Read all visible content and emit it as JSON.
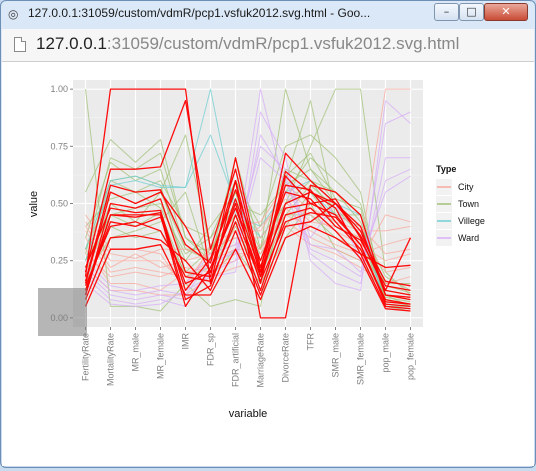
{
  "window": {
    "title": "127.0.0.1:31059/custom/vdmR/pcp1.vsfuk2012.svg.html - Goo...",
    "app_icon": "chrome-app-icon",
    "controls": {
      "minimize": "minimize-icon",
      "maximize": "maximize-icon",
      "close": "close-icon"
    }
  },
  "address": {
    "host": "127.0.0.1",
    "rest": ":31059/custom/vdmR/pcp1.vsfuk2012.svg.html"
  },
  "chart_data": {
    "type": "line",
    "subtype": "parallel-coordinates",
    "title": "",
    "xlabel": "variable",
    "ylabel": "value",
    "categories": [
      "FertilityRate",
      "MortalityRate",
      "MR_male",
      "MR_female",
      "IMR",
      "FDR_sp",
      "FDR_artificial",
      "MarriageRate",
      "DivorceRate",
      "TFR",
      "SMR_male",
      "SMR_female",
      "pop_male",
      "pop_female"
    ],
    "ylim": [
      -0.04,
      1.04
    ],
    "yticks": [
      0.0,
      0.25,
      0.5,
      0.75,
      1.0
    ],
    "ytick_labels": [
      "0.00",
      "0.25",
      "0.50",
      "0.75",
      "1.00"
    ],
    "grid": true,
    "background": "#ebebeb",
    "legend": {
      "title": "Type",
      "position": "right",
      "entries": [
        {
          "name": "City",
          "color": "#f8a99f"
        },
        {
          "name": "Town",
          "color": "#a3c179"
        },
        {
          "name": "Villege",
          "color": "#72cfd3"
        },
        {
          "name": "Ward",
          "color": "#d7aef7"
        }
      ]
    },
    "highlight_color": "#ff0000",
    "series": [
      {
        "type": "Town",
        "values": [
          1.0,
          0.05,
          0.05,
          0.03,
          0.15,
          0.05,
          0.08,
          0.05,
          0.6,
          0.95,
          0.45,
          0.45,
          0.1,
          0.05
        ]
      },
      {
        "type": "Town",
        "values": [
          0.55,
          0.78,
          0.68,
          0.78,
          0.35,
          0.25,
          0.7,
          0.3,
          0.65,
          0.6,
          0.55,
          0.45,
          0.05,
          0.05
        ]
      },
      {
        "type": "Town",
        "values": [
          0.25,
          0.6,
          0.55,
          0.6,
          0.4,
          0.35,
          0.6,
          0.35,
          0.5,
          0.75,
          1.0,
          1.0,
          0.2,
          0.1
        ]
      },
      {
        "type": "Town",
        "values": [
          0.3,
          0.55,
          0.5,
          0.55,
          0.3,
          0.3,
          0.5,
          0.3,
          1.0,
          0.65,
          0.5,
          0.4,
          0.15,
          0.15
        ]
      },
      {
        "type": "Town",
        "values": [
          0.2,
          0.45,
          0.48,
          0.5,
          0.25,
          0.4,
          0.55,
          0.2,
          0.4,
          0.55,
          0.4,
          0.35,
          0.08,
          0.05
        ]
      },
      {
        "type": "Town",
        "values": [
          0.3,
          0.6,
          0.62,
          0.58,
          0.2,
          0.3,
          0.45,
          0.25,
          0.55,
          0.7,
          0.6,
          0.5,
          0.1,
          0.08
        ]
      },
      {
        "type": "Town",
        "values": [
          0.18,
          0.35,
          0.38,
          0.42,
          0.55,
          0.2,
          0.4,
          0.18,
          0.45,
          0.45,
          0.35,
          0.3,
          0.12,
          0.1
        ]
      },
      {
        "type": "Town",
        "values": [
          0.35,
          0.68,
          0.6,
          0.65,
          0.3,
          0.25,
          0.6,
          0.4,
          0.75,
          0.8,
          0.7,
          0.55,
          0.05,
          0.03
        ]
      },
      {
        "type": "Town",
        "values": [
          0.22,
          0.5,
          0.42,
          0.55,
          0.8,
          0.3,
          0.35,
          0.3,
          0.5,
          0.6,
          0.45,
          0.4,
          0.18,
          0.12
        ]
      },
      {
        "type": "Town",
        "values": [
          0.28,
          0.7,
          0.65,
          0.72,
          0.35,
          0.28,
          0.55,
          0.22,
          0.62,
          0.72,
          0.52,
          0.48,
          0.07,
          0.06
        ]
      },
      {
        "type": "Town",
        "values": [
          0.15,
          0.4,
          0.35,
          0.38,
          0.2,
          0.18,
          0.3,
          0.15,
          0.35,
          0.5,
          0.3,
          0.25,
          0.1,
          0.08
        ]
      },
      {
        "type": "Town",
        "values": [
          0.4,
          0.52,
          0.55,
          0.48,
          0.28,
          0.35,
          0.5,
          0.45,
          0.58,
          0.65,
          0.55,
          0.42,
          0.14,
          0.11
        ]
      },
      {
        "type": "Town",
        "values": [
          0.25,
          0.45,
          0.4,
          0.46,
          0.18,
          0.22,
          0.42,
          0.28,
          0.45,
          0.58,
          0.48,
          0.36,
          0.09,
          0.07
        ]
      },
      {
        "type": "Villege",
        "values": [
          0.3,
          0.6,
          0.62,
          0.58,
          0.57,
          1.0,
          0.45,
          0.4,
          0.55,
          0.6,
          0.5,
          0.45,
          0.05,
          0.04
        ]
      },
      {
        "type": "Villege",
        "values": [
          0.25,
          0.58,
          0.6,
          0.57,
          0.57,
          0.8,
          0.5,
          0.35,
          0.5,
          0.55,
          0.45,
          0.4,
          0.06,
          0.05
        ]
      },
      {
        "type": "City",
        "values": [
          0.35,
          0.2,
          0.22,
          0.2,
          0.18,
          0.25,
          0.3,
          0.3,
          0.45,
          0.4,
          0.35,
          0.3,
          1.0,
          1.0
        ]
      },
      {
        "type": "City",
        "values": [
          0.3,
          0.15,
          0.15,
          0.12,
          0.2,
          0.22,
          0.25,
          0.32,
          0.42,
          0.35,
          0.3,
          0.25,
          0.45,
          0.42
        ]
      },
      {
        "type": "City",
        "values": [
          0.4,
          0.25,
          0.25,
          0.25,
          0.15,
          0.3,
          0.35,
          0.35,
          0.5,
          0.45,
          0.38,
          0.32,
          0.25,
          0.28
        ]
      },
      {
        "type": "City",
        "values": [
          0.28,
          0.18,
          0.2,
          0.18,
          0.22,
          0.2,
          0.28,
          0.28,
          0.48,
          0.38,
          0.32,
          0.28,
          0.32,
          0.35
        ]
      },
      {
        "type": "City",
        "values": [
          0.38,
          0.22,
          0.28,
          0.22,
          0.25,
          0.28,
          0.32,
          0.4,
          0.52,
          0.42,
          0.4,
          0.35,
          0.2,
          0.22
        ]
      },
      {
        "type": "City",
        "values": [
          0.45,
          0.3,
          0.3,
          0.28,
          0.12,
          0.32,
          0.38,
          0.38,
          0.55,
          0.48,
          0.42,
          0.38,
          0.38,
          0.4
        ]
      },
      {
        "type": "City",
        "values": [
          0.22,
          0.12,
          0.12,
          0.1,
          0.1,
          0.18,
          0.22,
          0.25,
          0.4,
          0.32,
          0.28,
          0.22,
          0.15,
          0.18
        ]
      },
      {
        "type": "City",
        "values": [
          0.42,
          0.28,
          0.26,
          0.3,
          0.3,
          0.26,
          0.4,
          0.42,
          0.58,
          0.5,
          0.45,
          0.4,
          0.28,
          0.3
        ]
      },
      {
        "type": "Ward",
        "values": [
          0.2,
          0.1,
          0.08,
          0.1,
          0.08,
          0.2,
          0.25,
          0.8,
          0.62,
          0.3,
          0.25,
          0.18,
          0.85,
          0.9
        ]
      },
      {
        "type": "Ward",
        "values": [
          0.18,
          0.08,
          0.06,
          0.08,
          0.05,
          0.22,
          0.3,
          1.0,
          0.55,
          0.28,
          0.2,
          0.15,
          0.7,
          0.7
        ]
      },
      {
        "type": "Ward",
        "values": [
          0.22,
          0.12,
          0.1,
          0.12,
          0.1,
          0.25,
          0.28,
          0.7,
          0.6,
          0.32,
          0.3,
          0.2,
          0.6,
          0.65
        ]
      },
      {
        "type": "Ward",
        "values": [
          0.15,
          0.06,
          0.05,
          0.06,
          0.12,
          0.18,
          0.2,
          0.9,
          0.7,
          0.25,
          0.15,
          0.12,
          0.95,
          0.85
        ]
      },
      {
        "type": "Ward",
        "values": [
          0.25,
          0.14,
          0.12,
          0.14,
          0.15,
          0.28,
          0.32,
          0.75,
          0.65,
          0.35,
          0.5,
          0.25,
          0.55,
          0.62
        ]
      },
      {
        "type": "Highlight",
        "values": [
          0.12,
          0.45,
          0.45,
          0.45,
          0.05,
          0.22,
          0.48,
          0.18,
          0.5,
          0.55,
          0.48,
          0.28,
          0.05,
          0.04
        ]
      },
      {
        "type": "Highlight",
        "values": [
          0.18,
          1.0,
          1.0,
          1.0,
          1.0,
          0.15,
          0.6,
          0.0,
          0.0,
          0.58,
          0.55,
          0.45,
          0.1,
          0.08
        ]
      },
      {
        "type": "Highlight",
        "values": [
          0.2,
          0.65,
          0.65,
          0.66,
          0.95,
          0.3,
          0.65,
          0.2,
          0.72,
          0.6,
          0.5,
          0.38,
          0.12,
          0.1
        ]
      },
      {
        "type": "Highlight",
        "values": [
          0.15,
          0.55,
          0.5,
          0.55,
          0.4,
          0.2,
          0.5,
          0.15,
          0.62,
          0.5,
          0.45,
          0.32,
          0.06,
          0.05
        ]
      },
      {
        "type": "Highlight",
        "values": [
          0.1,
          0.5,
          0.48,
          0.52,
          0.2,
          0.18,
          0.7,
          0.22,
          0.58,
          0.56,
          0.42,
          0.3,
          0.08,
          0.06
        ]
      },
      {
        "type": "Highlight",
        "values": [
          0.22,
          0.48,
          0.46,
          0.47,
          0.12,
          0.26,
          0.56,
          0.25,
          0.55,
          0.52,
          0.4,
          0.34,
          0.14,
          0.12
        ]
      },
      {
        "type": "Highlight",
        "values": [
          0.14,
          0.4,
          0.42,
          0.38,
          0.18,
          0.16,
          0.42,
          0.12,
          0.45,
          0.48,
          0.38,
          0.26,
          0.04,
          0.03
        ]
      },
      {
        "type": "Highlight",
        "values": [
          0.08,
          0.35,
          0.36,
          0.34,
          0.25,
          0.12,
          0.38,
          0.1,
          0.4,
          0.42,
          0.5,
          0.36,
          0.16,
          0.14
        ]
      },
      {
        "type": "Highlight",
        "values": [
          0.05,
          0.3,
          0.3,
          0.32,
          0.1,
          0.1,
          0.3,
          0.08,
          0.35,
          0.4,
          0.35,
          0.28,
          0.22,
          0.23
        ]
      },
      {
        "type": "Highlight",
        "values": [
          0.16,
          0.58,
          0.55,
          0.56,
          0.32,
          0.24,
          0.6,
          0.18,
          0.64,
          0.55,
          0.5,
          0.4,
          0.1,
          0.09
        ]
      },
      {
        "type": "Highlight",
        "values": [
          0.12,
          0.42,
          0.4,
          0.44,
          0.15,
          0.2,
          0.52,
          0.2,
          0.48,
          0.5,
          0.52,
          0.35,
          0.12,
          0.35
        ]
      },
      {
        "type": "Highlight",
        "values": [
          0.1,
          0.45,
          0.44,
          0.46,
          0.08,
          0.14,
          0.45,
          0.16,
          0.42,
          0.46,
          0.44,
          0.32,
          0.07,
          0.06
        ]
      }
    ]
  }
}
